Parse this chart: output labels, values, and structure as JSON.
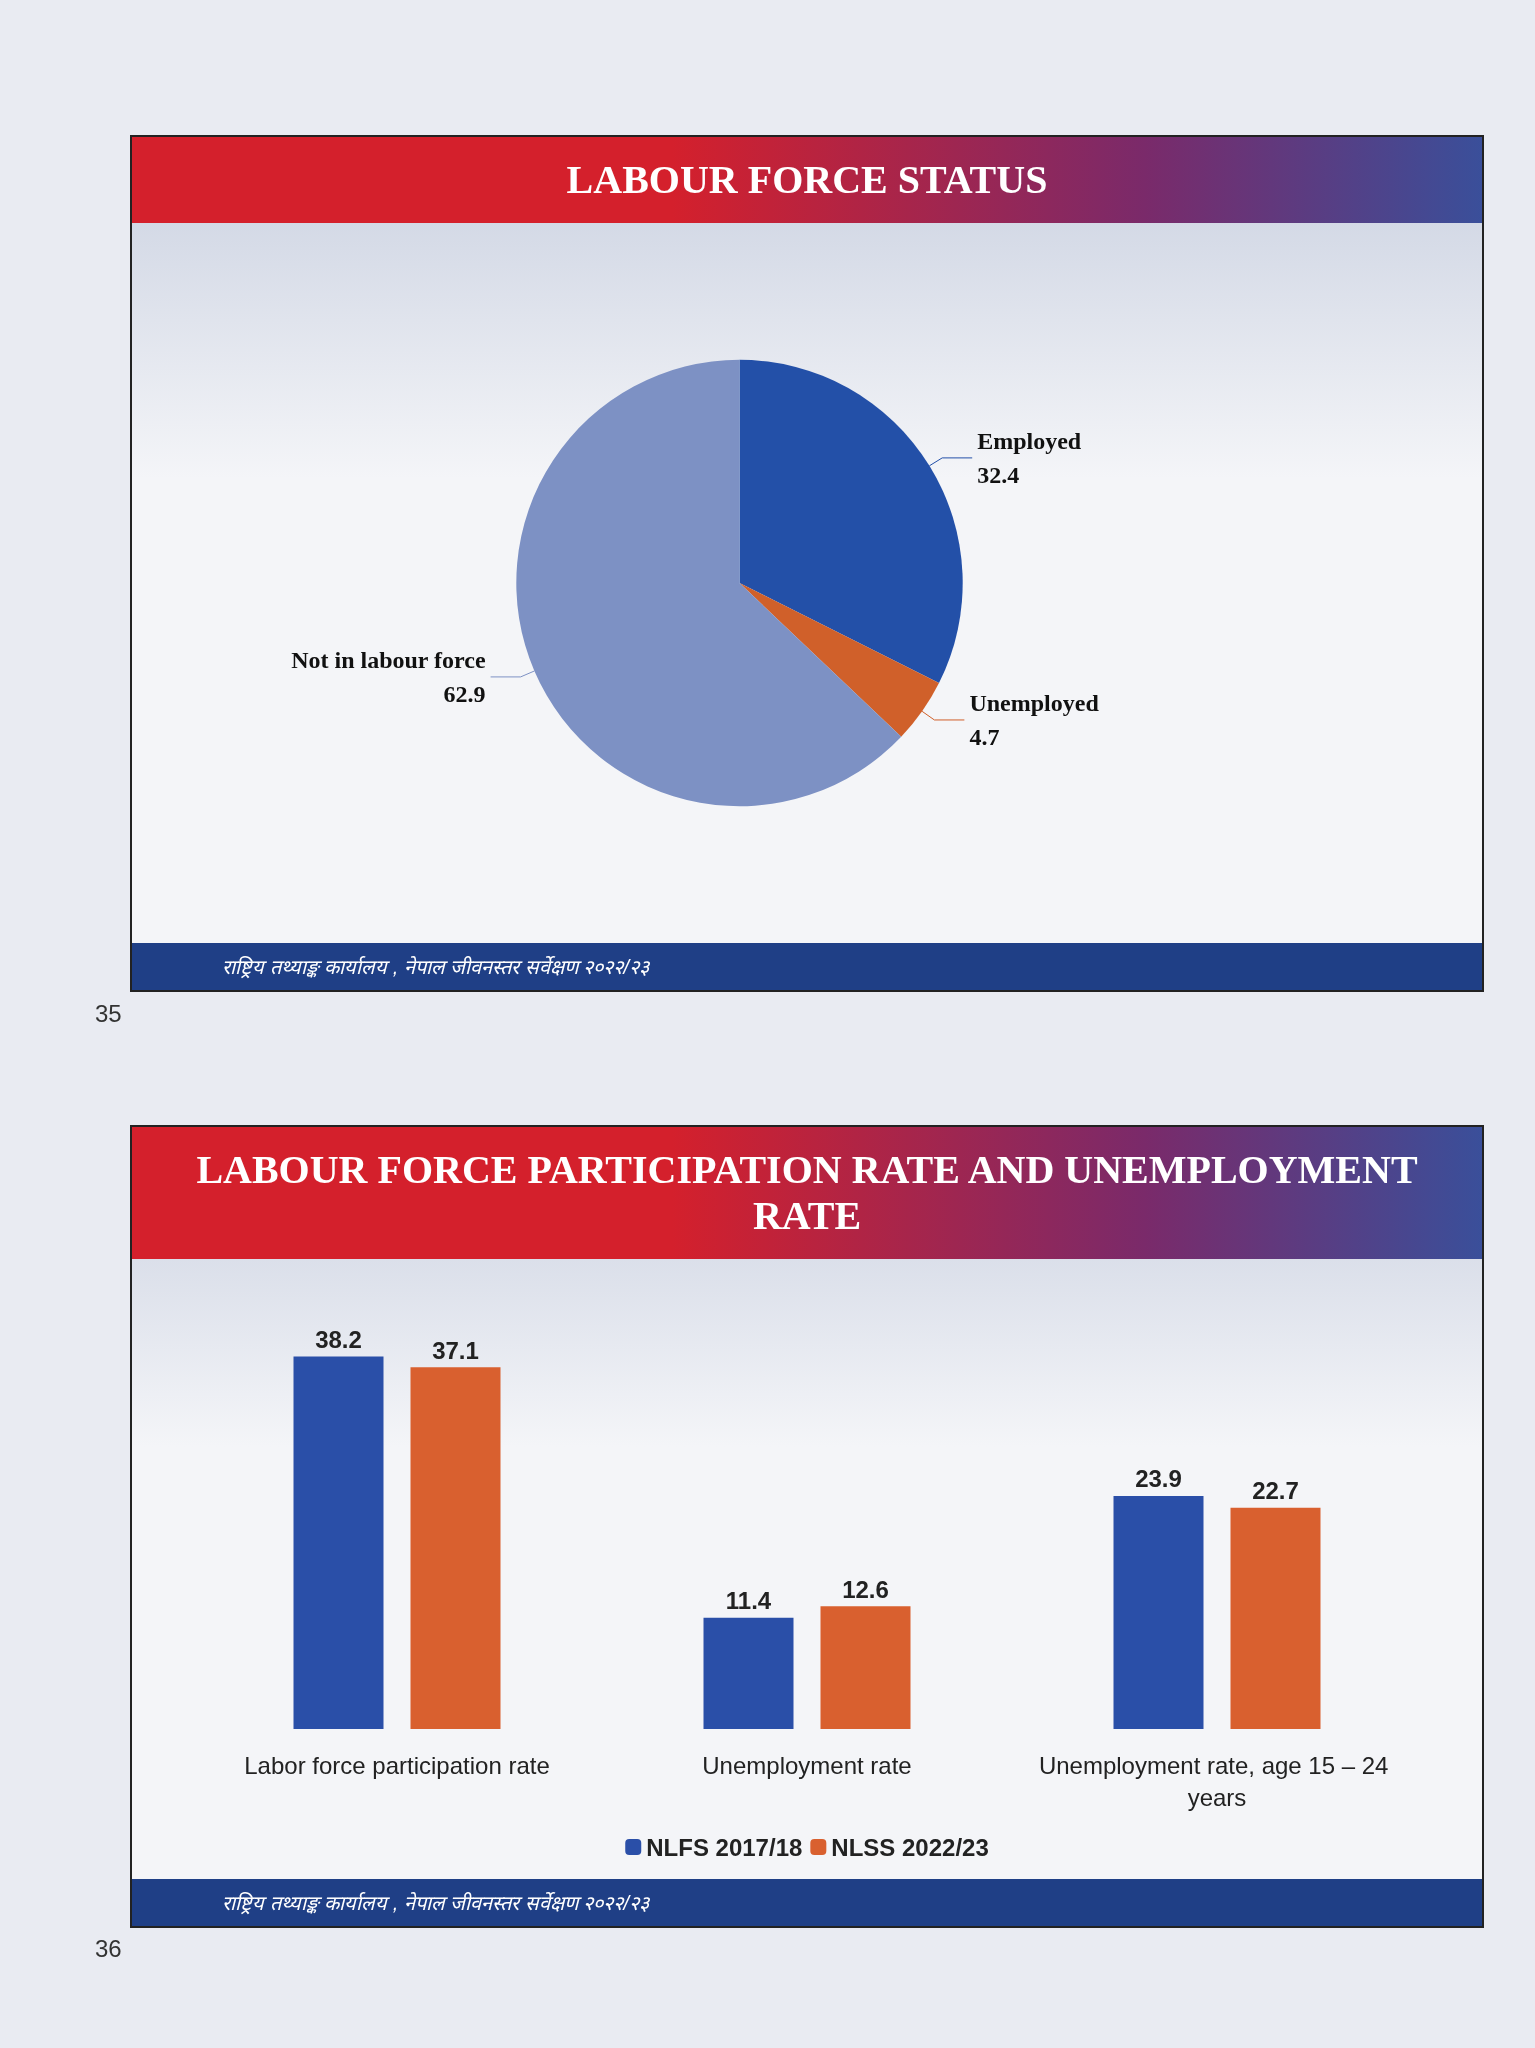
{
  "chart_data": [
    {
      "type": "pie",
      "title": "LABOUR FORCE STATUS",
      "categories": [
        "Employed",
        "Unemployed",
        "Not in labour force"
      ],
      "values": [
        32.4,
        4.7,
        62.9
      ],
      "colors": [
        "#2350a8",
        "#d0602a",
        "#7d91c4"
      ],
      "data_labels": true,
      "legend": false,
      "annotations": [
        "राष्ट्रिय तथ्याङ्क कार्यालय , नेपाल जीवनस्तर सर्वेक्षण २०२२/२३",
        "35"
      ]
    },
    {
      "type": "bar",
      "title": "LABOUR FORCE PARTICIPATION RATE AND UNEMPLOYMENT RATE",
      "categories": [
        "Labor force participation rate",
        "Unemployment rate",
        "Unemployment rate, age 15 – 24 years"
      ],
      "series": [
        {
          "name": "NLFS 2017/18",
          "color": "#2a4fa8",
          "values": [
            38.2,
            11.4,
            23.9
          ]
        },
        {
          "name": "NLSS 2022/23",
          "color": "#d9602f",
          "values": [
            37.1,
            12.6,
            22.7
          ]
        }
      ],
      "data_labels": true,
      "legend": "bottom",
      "annotations": [
        "राष्ट्रिय तथ्याङ्क कार्यालय , नेपाल जीवनस्तर सर्वेक्षण २०२२/२३",
        "36"
      ]
    }
  ]
}
